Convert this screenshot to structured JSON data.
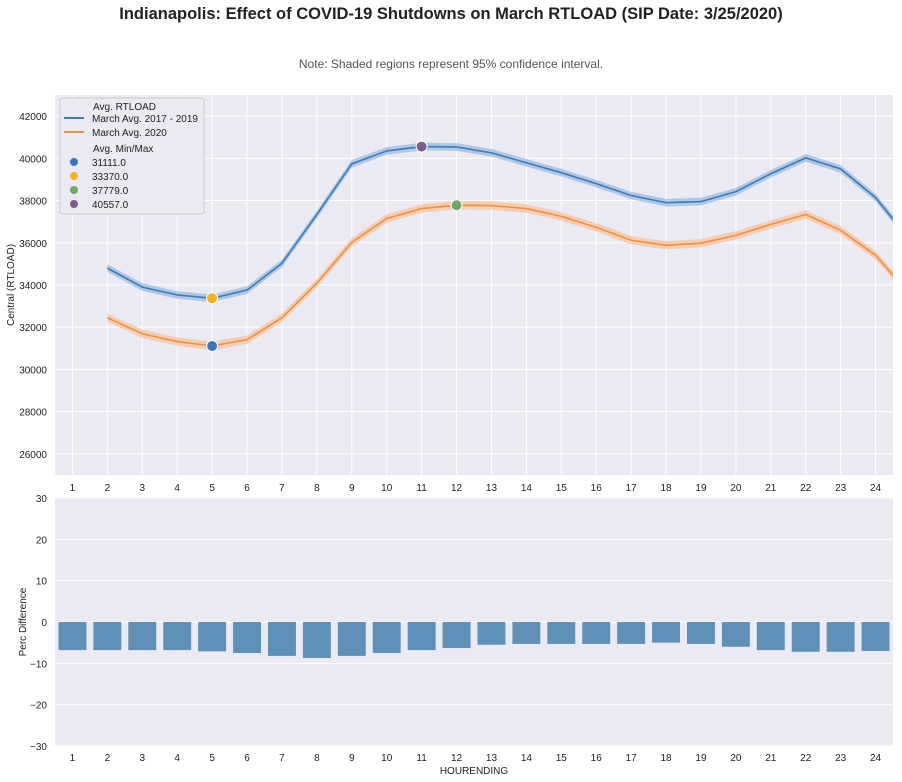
{
  "chart_data": [
    {
      "type": "line",
      "title": "Indianapolis: Effect of COVID-19 Shutdowns on March RTLOAD (SIP Date: 3/25/2020)",
      "subtitle": "Note: Shaded regions represent 95% confidence interval.",
      "xlabel": "",
      "ylabel": "Central (RTLOAD)",
      "xlim": [
        0.5,
        24.5
      ],
      "ylim": [
        25000,
        43000
      ],
      "xticks": [
        1,
        2,
        3,
        4,
        5,
        6,
        7,
        8,
        9,
        10,
        11,
        12,
        13,
        14,
        15,
        16,
        17,
        18,
        19,
        20,
        21,
        22,
        23,
        24
      ],
      "yticks": [
        26000,
        28000,
        30000,
        32000,
        34000,
        36000,
        38000,
        40000,
        42000
      ],
      "grid": true,
      "legend": {
        "placement": "top-left",
        "title_lines": "Avg. RTLOAD",
        "title_markers": "Avg. Min/Max"
      },
      "x": [
        2,
        3,
        4,
        5,
        6,
        7,
        8,
        9,
        10,
        11,
        12,
        13,
        14,
        15,
        16,
        17,
        18,
        19,
        20,
        21,
        22,
        23,
        24,
        25
      ],
      "series": [
        {
          "name": "March Avg. 2017 - 2019",
          "color": "#3a7bb8",
          "band": "#9fc1de",
          "ci": 180,
          "values": [
            34800,
            33900,
            33530,
            33370,
            33760,
            35030,
            37340,
            39740,
            40350,
            40557,
            40540,
            40260,
            39790,
            39320,
            38800,
            38240,
            37900,
            37950,
            38420,
            39270,
            40020,
            39500,
            38140,
            36100
          ]
        },
        {
          "name": "March Avg. 2020",
          "color": "#f0913a",
          "band": "#f6c7a1",
          "ci": 200,
          "values": [
            32450,
            31690,
            31320,
            31111,
            31410,
            32450,
            34090,
            36020,
            37150,
            37620,
            37779,
            37760,
            37620,
            37250,
            36730,
            36120,
            35880,
            35980,
            36350,
            36870,
            37340,
            36590,
            35410,
            33530
          ]
        }
      ],
      "markers": [
        {
          "label": "31111.0",
          "x": 5,
          "y": 31111,
          "color": "#3a75c4"
        },
        {
          "label": "33370.0",
          "x": 5,
          "y": 33370,
          "color": "#f9b315"
        },
        {
          "label": "37779.0",
          "x": 12,
          "y": 37779,
          "color": "#6fa86a"
        },
        {
          "label": "40557.0",
          "x": 11,
          "y": 40557,
          "color": "#7d5f8e"
        }
      ]
    },
    {
      "type": "bar",
      "xlabel": "HOURENDING",
      "ylabel": "Perc Difference",
      "ylim": [
        -30,
        30
      ],
      "yticks": [
        -30,
        -20,
        -10,
        0,
        10,
        20,
        30
      ],
      "ytick_labels": [
        "−30",
        "−20",
        "−10",
        "0",
        "10",
        "20",
        "30"
      ],
      "grid": true,
      "color": "#5f90b7",
      "categories": [
        "1",
        "2",
        "3",
        "4",
        "5",
        "6",
        "7",
        "8",
        "9",
        "10",
        "11",
        "12",
        "13",
        "14",
        "15",
        "16",
        "17",
        "18",
        "19",
        "20",
        "21",
        "22",
        "23",
        "24"
      ],
      "values": [
        -6.8,
        -6.8,
        -6.8,
        -6.8,
        -7.1,
        -7.5,
        -8.2,
        -8.7,
        -8.2,
        -7.5,
        -6.8,
        -6.3,
        -5.5,
        -5.3,
        -5.3,
        -5.3,
        -5.3,
        -5.0,
        -5.3,
        -6.0,
        -6.8,
        -7.2,
        -7.2,
        -7.0
      ]
    }
  ]
}
